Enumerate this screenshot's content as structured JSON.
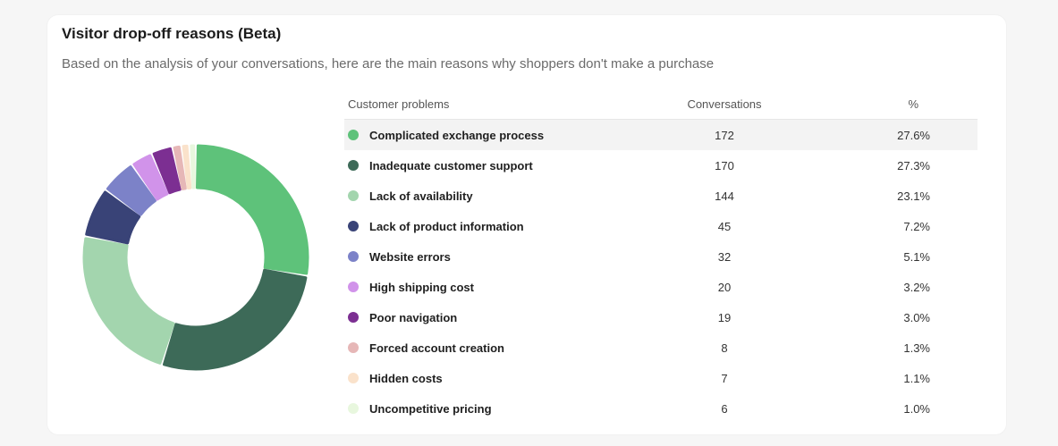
{
  "card": {
    "title": "Visitor drop-off reasons (Beta)",
    "subtitle": "Based on the analysis of your conversations, here are the main reasons why shoppers don't make a purchase"
  },
  "table": {
    "headers": {
      "problem": "Customer problems",
      "conversations": "Conversations",
      "percent": "%"
    },
    "rows": [
      {
        "label": "Complicated exchange process",
        "conversations": "172",
        "percent": "27.6%",
        "color": "#5ec27a"
      },
      {
        "label": "Inadequate customer support",
        "conversations": "170",
        "percent": "27.3%",
        "color": "#3d6a58"
      },
      {
        "label": "Lack of availability",
        "conversations": "144",
        "percent": "23.1%",
        "color": "#a3d5ae"
      },
      {
        "label": "Lack of product information",
        "conversations": "45",
        "percent": "7.2%",
        "color": "#394377"
      },
      {
        "label": "Website errors",
        "conversations": "32",
        "percent": "5.1%",
        "color": "#7c82c8"
      },
      {
        "label": "High shipping cost",
        "conversations": "20",
        "percent": "3.2%",
        "color": "#d193ea"
      },
      {
        "label": "Poor navigation",
        "conversations": "19",
        "percent": "3.0%",
        "color": "#7c2f92"
      },
      {
        "label": "Forced account creation",
        "conversations": "8",
        "percent": "1.3%",
        "color": "#e6b7b7"
      },
      {
        "label": "Hidden costs",
        "conversations": "7",
        "percent": "1.1%",
        "color": "#fae2cb"
      },
      {
        "label": "Uncompetitive pricing",
        "conversations": "6",
        "percent": "1.0%",
        "color": "#e8f7de"
      }
    ]
  },
  "chart_data": {
    "type": "pie",
    "variant": "donut",
    "categories": [
      "Complicated exchange process",
      "Inadequate customer support",
      "Lack of availability",
      "Lack of product information",
      "Website errors",
      "High shipping cost",
      "Poor navigation",
      "Forced account creation",
      "Hidden costs",
      "Uncompetitive pricing"
    ],
    "values": [
      172,
      170,
      144,
      45,
      32,
      20,
      19,
      8,
      7,
      6
    ],
    "colors": [
      "#5ec27a",
      "#3d6a58",
      "#a3d5ae",
      "#394377",
      "#7c82c8",
      "#d193ea",
      "#7c2f92",
      "#e6b7b7",
      "#fae2cb",
      "#e8f7de"
    ]
  }
}
